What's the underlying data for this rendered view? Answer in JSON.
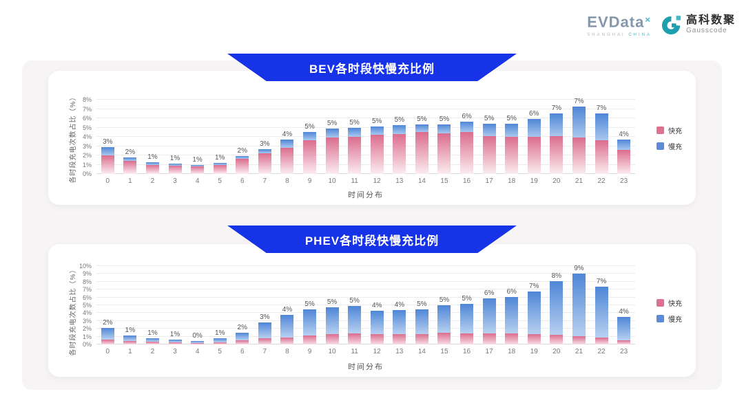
{
  "logo": {
    "evdata_text": "EVData",
    "evdata_sup": "×",
    "evdata_sub_left": "SHANGHAI",
    "evdata_sub_right": "CHINA",
    "gausscode_cn": "高科数聚",
    "gausscode_en": "Gausscode"
  },
  "theme": {
    "banner_blue": "#1733e8",
    "banner_text": "#ffffff",
    "panel_bg": "#f6f4f4",
    "card_bg": "#ffffff",
    "grid_color": "#ebebeb",
    "fast_pink": "#df7190",
    "slow_blue": "#5d8bd8"
  },
  "chart_data": [
    {
      "type": "bar",
      "stacked": true,
      "title": "BEV各时段快慢充比例",
      "xlabel": "时间分布",
      "ylabel": "各时段充电次数占比（%）",
      "ylim": [
        0,
        8
      ],
      "y_tick_suffix": "%",
      "grid": true,
      "legend_position": "right",
      "categories": [
        0,
        1,
        2,
        3,
        4,
        5,
        6,
        7,
        8,
        9,
        10,
        11,
        12,
        13,
        14,
        15,
        16,
        17,
        18,
        19,
        20,
        21,
        22,
        23
      ],
      "bar_labels": [
        "3%",
        "2%",
        "1%",
        "1%",
        "1%",
        "1%",
        "2%",
        "3%",
        "4%",
        "5%",
        "5%",
        "5%",
        "5%",
        "5%",
        "5%",
        "5%",
        "6%",
        "5%",
        "5%",
        "6%",
        "7%",
        "7%",
        "7%",
        "4%"
      ],
      "series": [
        {
          "name": "快充",
          "color": "#df7190",
          "gradient_from": "#db6d8e",
          "gradient_to": "#fbecf0",
          "values": [
            2.0,
            1.4,
            1.0,
            0.9,
            0.85,
            1.0,
            1.6,
            2.2,
            2.8,
            3.6,
            3.9,
            4.0,
            4.2,
            4.3,
            4.5,
            4.4,
            4.5,
            4.1,
            4.0,
            4.0,
            4.1,
            3.9,
            3.6,
            2.6
          ]
        },
        {
          "name": "慢充",
          "color": "#5d8bd8",
          "gradient_from": "#4f86d6",
          "gradient_to": "#a9c7ee",
          "values": [
            0.9,
            0.4,
            0.3,
            0.2,
            0.1,
            0.2,
            0.3,
            0.5,
            0.9,
            0.9,
            1.0,
            1.0,
            0.9,
            1.0,
            0.8,
            0.9,
            1.1,
            1.3,
            1.4,
            1.9,
            2.4,
            3.4,
            2.9,
            1.1
          ]
        }
      ]
    },
    {
      "type": "bar",
      "stacked": true,
      "title": "PHEV各时段快慢充比例",
      "xlabel": "时间分布",
      "ylabel": "各时段充电次数占比（%）",
      "ylim": [
        0,
        10
      ],
      "y_tick_suffix": "%",
      "grid": true,
      "legend_position": "right",
      "categories": [
        0,
        1,
        2,
        3,
        4,
        5,
        6,
        7,
        8,
        9,
        10,
        11,
        12,
        13,
        14,
        15,
        16,
        17,
        18,
        19,
        20,
        21,
        22,
        23
      ],
      "bar_labels": [
        "2%",
        "1%",
        "1%",
        "1%",
        "0%",
        "1%",
        "2%",
        "3%",
        "4%",
        "5%",
        "5%",
        "5%",
        "4%",
        "4%",
        "5%",
        "5%",
        "5%",
        "6%",
        "6%",
        "7%",
        "8%",
        "9%",
        "7%",
        "4%"
      ],
      "series": [
        {
          "name": "快充",
          "color": "#df7190",
          "gradient_from": "#db6d8e",
          "gradient_to": "#f6dde6",
          "values": [
            0.6,
            0.45,
            0.35,
            0.25,
            0.15,
            0.3,
            0.55,
            0.75,
            0.9,
            1.15,
            1.3,
            1.4,
            1.3,
            1.3,
            1.3,
            1.5,
            1.4,
            1.4,
            1.4,
            1.3,
            1.2,
            1.05,
            0.9,
            0.55
          ]
        },
        {
          "name": "慢充",
          "color": "#5d8bd8",
          "gradient_from": "#4f86d6",
          "gradient_to": "#b7d0f0",
          "values": [
            1.55,
            0.7,
            0.4,
            0.35,
            0.3,
            0.5,
            0.95,
            2.05,
            2.9,
            3.35,
            3.4,
            3.5,
            3.0,
            3.1,
            3.2,
            3.5,
            3.8,
            4.5,
            4.65,
            5.45,
            6.9,
            7.95,
            6.5,
            2.95
          ]
        }
      ]
    }
  ]
}
